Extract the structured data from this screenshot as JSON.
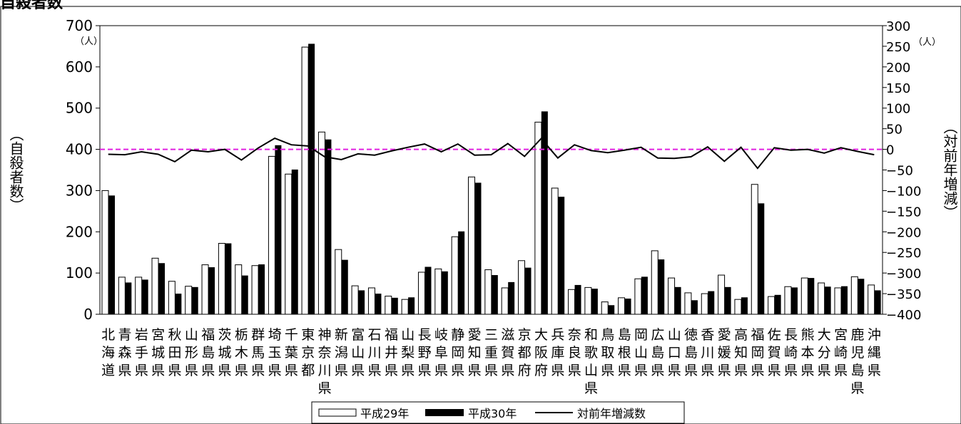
{
  "header_text": "自殺者数",
  "colors": {
    "bar2017": "#ffffff",
    "bar2018": "#000000",
    "line": "#000000",
    "zero_line": "#e020e0"
  },
  "chart_data": {
    "type": "bar",
    "title": "",
    "ylabel": "（自殺者数）",
    "y2label": "（対前年増減）",
    "y_unit": "（人）",
    "y2_unit": "（人）",
    "ylim": [
      0,
      700
    ],
    "y2lim": [
      -400,
      300
    ],
    "y_ticks": [
      "0",
      "100",
      "200",
      "300",
      "400",
      "500",
      "600",
      "700"
    ],
    "y2_ticks": [
      "300",
      "250",
      "200",
      "150",
      "100",
      "50",
      "0",
      "−50",
      "−100",
      "−150",
      "−200",
      "−250",
      "−300",
      "−350",
      "−400"
    ],
    "legend_position": "bottom",
    "categories": [
      "北海道",
      "青森県",
      "岩手県",
      "宮城県",
      "秋田県",
      "山形県",
      "福島県",
      "茨城県",
      "栃木県",
      "群馬県",
      "埼玉県",
      "千葉県",
      "東京都",
      "神奈川県",
      "新潟県",
      "富山県",
      "石川県",
      "福井県",
      "山梨県",
      "長野県",
      "岐阜県",
      "静岡県",
      "愛知県",
      "三重県",
      "滋賀県",
      "京都府",
      "大阪府",
      "兵庫県",
      "奈良県",
      "和歌山県",
      "鳥取県",
      "島根県",
      "岡山県",
      "広島県",
      "山口県",
      "徳島県",
      "香川県",
      "愛媛県",
      "高知県",
      "福岡県",
      "佐賀県",
      "長崎県",
      "熊本県",
      "大分県",
      "宮崎県",
      "鹿児島県",
      "沖縄県"
    ],
    "series": [
      {
        "name": "平成29年",
        "kind": "bar",
        "axis": "left",
        "values": [
          300,
          90,
          90,
          136,
          80,
          68,
          120,
          172,
          120,
          118,
          383,
          340,
          648,
          442,
          157,
          69,
          64,
          44,
          36,
          102,
          110,
          188,
          333,
          108,
          64,
          130,
          466,
          306,
          60,
          65,
          30,
          40,
          86,
          154,
          88,
          52,
          50,
          95,
          36,
          315,
          43,
          67,
          88,
          76,
          64,
          91,
          71
        ]
      },
      {
        "name": "平成30年",
        "kind": "bar",
        "axis": "left",
        "values": [
          288,
          77,
          84,
          124,
          50,
          66,
          114,
          172,
          94,
          121,
          410,
          351,
          656,
          424,
          132,
          58,
          50,
          40,
          41,
          115,
          104,
          201,
          319,
          95,
          78,
          113,
          492,
          285,
          71,
          62,
          22,
          38,
          91,
          133,
          66,
          34,
          56,
          66,
          41,
          269,
          47,
          65,
          88,
          67,
          68,
          86,
          58
        ]
      },
      {
        "name": "対前年増減数",
        "kind": "line",
        "axis": "right",
        "values": [
          -12,
          -13,
          -6,
          -12,
          -30,
          -2,
          -6,
          0,
          -26,
          3,
          27,
          11,
          8,
          -18,
          -25,
          -11,
          -14,
          -4,
          5,
          13,
          -6,
          13,
          -14,
          -13,
          14,
          -17,
          26,
          -21,
          11,
          -3,
          -8,
          -2,
          5,
          -21,
          -22,
          -18,
          6,
          -29,
          5,
          -46,
          4,
          -2,
          0,
          -9,
          4,
          -5,
          -13
        ]
      }
    ]
  }
}
